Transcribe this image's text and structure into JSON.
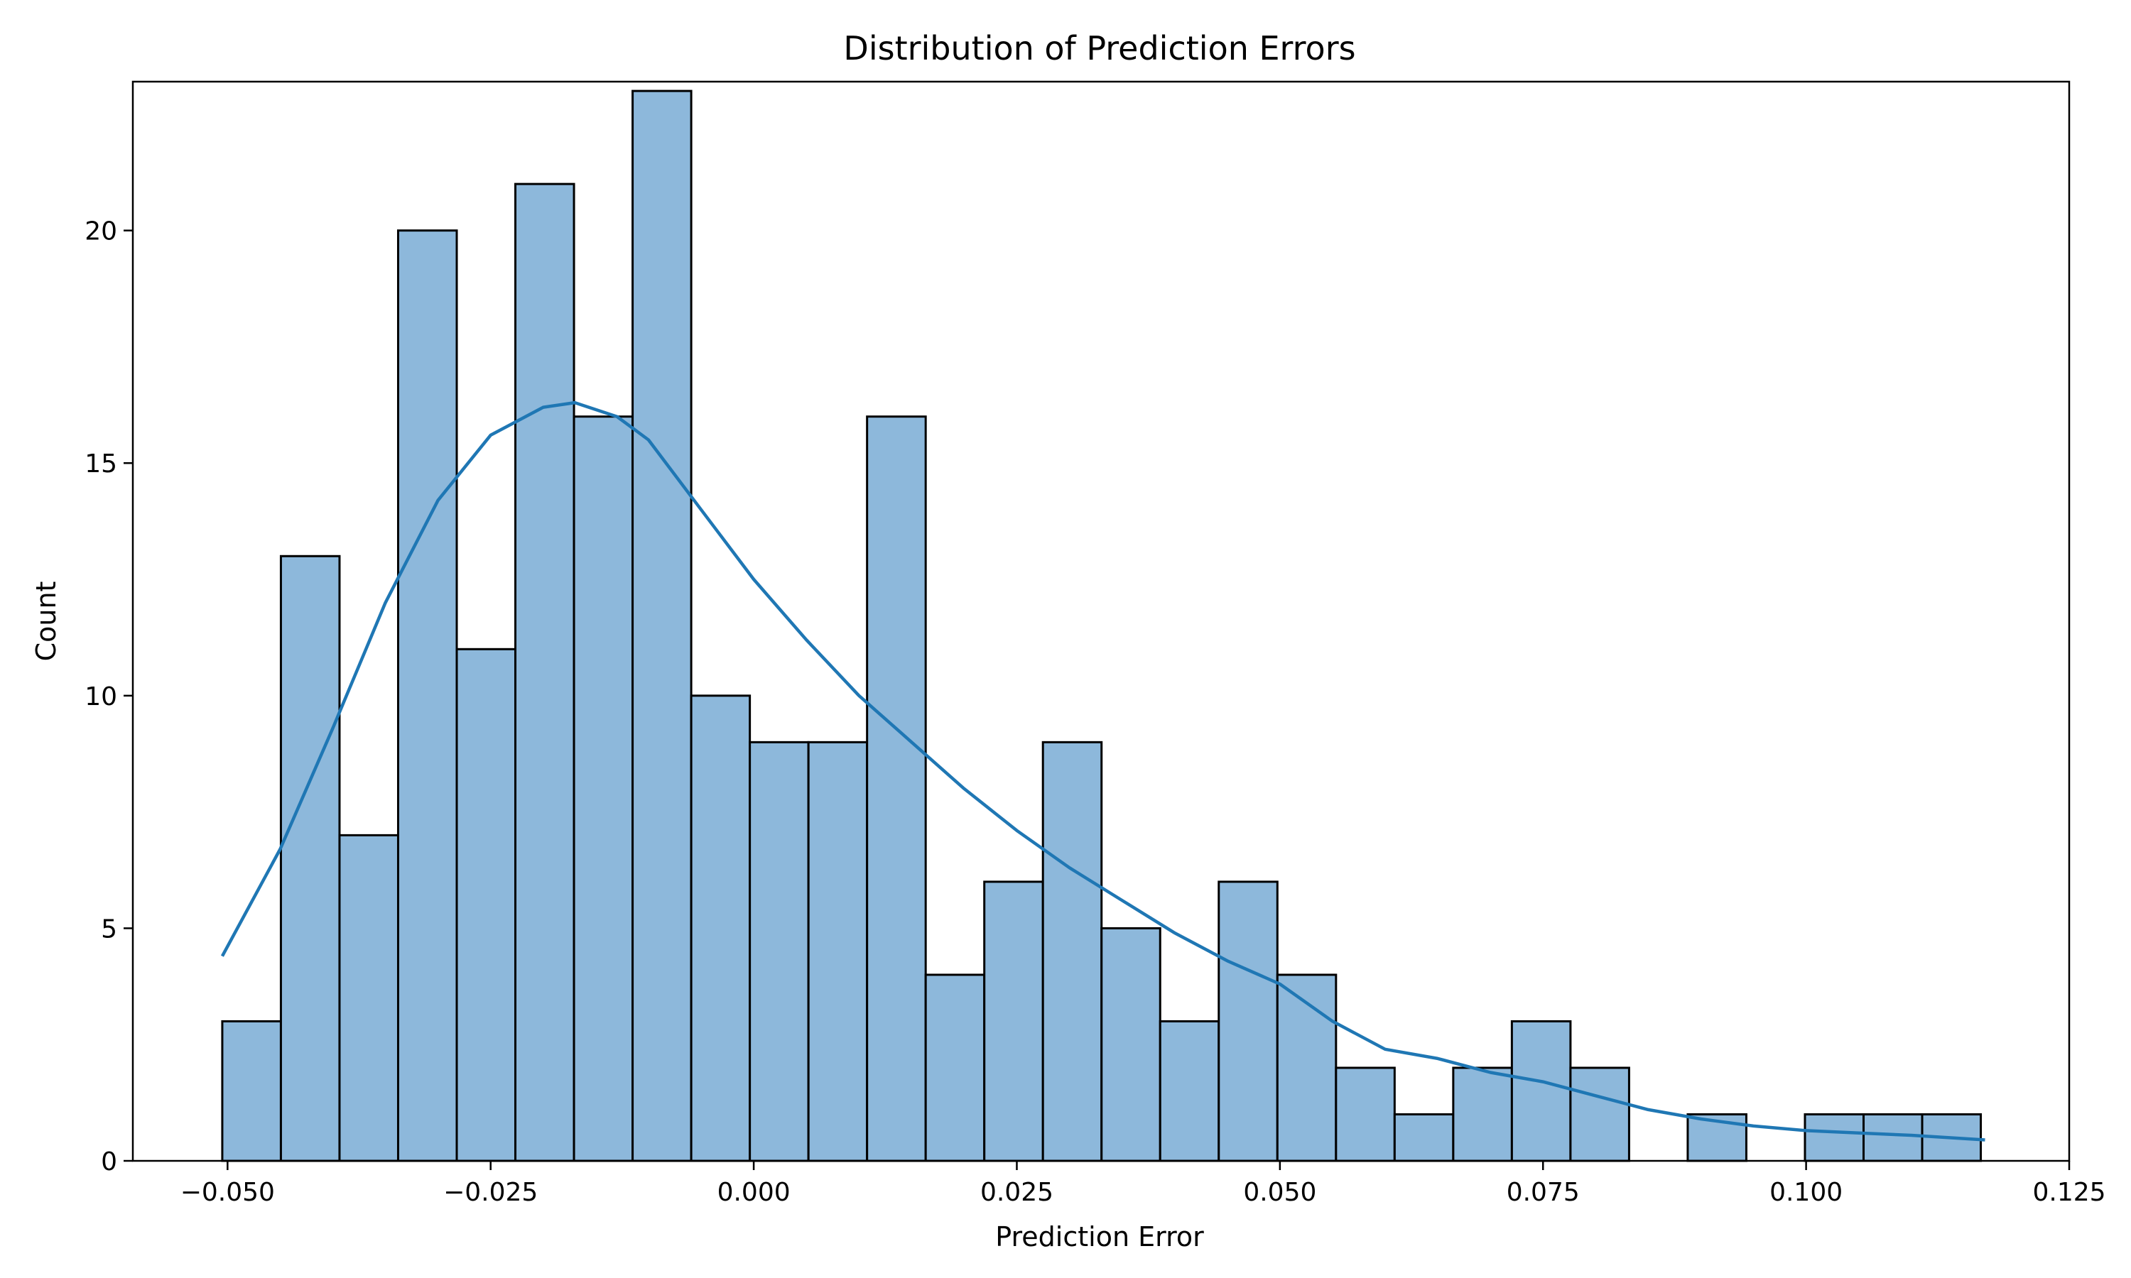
{
  "chart_data": {
    "type": "bar",
    "title": "Distribution of Prediction Errors",
    "xlabel": "Prediction Error",
    "ylabel": "Count",
    "xlim": [
      -0.059,
      0.125
    ],
    "ylim": [
      0,
      23.2
    ],
    "grid": false,
    "legend": "none",
    "bins": {
      "start": -0.0505,
      "width": 0.00557,
      "counts": [
        3,
        13,
        7,
        20,
        11,
        21,
        16,
        23,
        10,
        9,
        9,
        16,
        4,
        6,
        9,
        5,
        3,
        6,
        4,
        2,
        1,
        2,
        3,
        2,
        0,
        1,
        0,
        1,
        1,
        1
      ]
    },
    "kde": {
      "x": [
        -0.0505,
        -0.045,
        -0.04,
        -0.035,
        -0.03,
        -0.025,
        -0.02,
        -0.017,
        -0.013,
        -0.01,
        -0.005,
        0.0,
        0.005,
        0.01,
        0.015,
        0.02,
        0.025,
        0.03,
        0.035,
        0.04,
        0.045,
        0.05,
        0.055,
        0.06,
        0.065,
        0.07,
        0.075,
        0.08,
        0.085,
        0.09,
        0.095,
        0.1,
        0.105,
        0.11,
        0.117
      ],
      "y": [
        4.4,
        6.7,
        9.3,
        12.0,
        14.2,
        15.6,
        16.2,
        16.3,
        16.0,
        15.5,
        14.0,
        12.5,
        11.2,
        10.0,
        9.0,
        8.0,
        7.1,
        6.3,
        5.6,
        4.9,
        4.3,
        3.8,
        3.0,
        2.4,
        2.2,
        1.9,
        1.7,
        1.4,
        1.1,
        0.9,
        0.75,
        0.65,
        0.6,
        0.55,
        0.45
      ]
    },
    "xticks": [
      -0.05,
      -0.025,
      0.0,
      0.025,
      0.05,
      0.075,
      0.1,
      0.125
    ],
    "xtick_labels": [
      "−0.050",
      "−0.025",
      "0.000",
      "0.025",
      "0.050",
      "0.075",
      "0.100",
      "0.125"
    ],
    "yticks": [
      0,
      5,
      10,
      15,
      20
    ],
    "ytick_labels": [
      "0",
      "5",
      "10",
      "15",
      "20"
    ],
    "colors": {
      "bar_fill": "#8db8db",
      "bar_edge": "#000000",
      "kde_line": "#1f77b4"
    }
  }
}
